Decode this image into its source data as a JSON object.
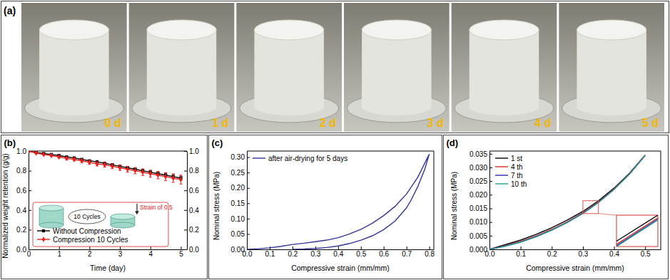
{
  "chart_data": [
    {
      "type": "photo",
      "title": "(a)",
      "labels": [
        "0 d",
        "1 d",
        "2 d",
        "3 d",
        "4 d",
        "5 d"
      ]
    },
    {
      "type": "line",
      "title": "(b)",
      "xlabel": "Time (day)",
      "ylabel": "Normalized weight retention (g/g)",
      "x": [
        0,
        0.25,
        0.5,
        0.75,
        1,
        1.25,
        1.5,
        1.75,
        2,
        2.25,
        2.5,
        2.75,
        3,
        3.25,
        3.5,
        3.75,
        4,
        4.25,
        4.5,
        4.75,
        5
      ],
      "xlim": [
        0,
        5.2
      ],
      "xticks": [
        0,
        1,
        2,
        3,
        4,
        5
      ],
      "ylim": [
        0,
        1.0
      ],
      "yticks": [
        {
          "value": 0,
          "label": "0.0"
        },
        0.2,
        0.4,
        0.6,
        0.8,
        {
          "value": 1,
          "label": "1.0"
        }
      ],
      "y2lim": [
        0,
        1.0
      ],
      "y2ticks": [
        {
          "value": 0,
          "label": "0.0"
        },
        0.2,
        0.4,
        0.6,
        0.8,
        {
          "value": 1,
          "label": "1.0"
        }
      ],
      "legend": "lower left",
      "annotations": [
        "10 Cycles",
        "Strain of 0.5"
      ],
      "series": [
        {
          "name": "Without Compression",
          "color": "#000000",
          "marker": "square",
          "values": [
            1.0,
            0.985,
            0.975,
            0.965,
            0.955,
            0.94,
            0.93,
            0.915,
            0.9,
            0.89,
            0.875,
            0.86,
            0.845,
            0.83,
            0.815,
            0.8,
            0.785,
            0.77,
            0.755,
            0.74,
            0.725
          ],
          "errors": [
            0,
            0.003,
            0.004,
            0.005,
            0.006,
            0.007,
            0.008,
            0.009,
            0.01,
            0.011,
            0.012,
            0.012,
            0.013,
            0.014,
            0.015,
            0.016,
            0.017,
            0.018,
            0.019,
            0.02,
            0.02
          ]
        },
        {
          "name": "Compression 10 Cycles",
          "color": "#e8201b",
          "marker": "diamond",
          "values": [
            1.0,
            0.98,
            0.965,
            0.955,
            0.94,
            0.925,
            0.915,
            0.9,
            0.885,
            0.87,
            0.86,
            0.845,
            0.83,
            0.815,
            0.8,
            0.785,
            0.77,
            0.755,
            0.74,
            0.725,
            0.71
          ],
          "errors": [
            0,
            0.005,
            0.007,
            0.009,
            0.011,
            0.013,
            0.015,
            0.017,
            0.019,
            0.021,
            0.023,
            0.025,
            0.027,
            0.029,
            0.031,
            0.033,
            0.035,
            0.037,
            0.04,
            0.043,
            0.045
          ]
        }
      ]
    },
    {
      "type": "line",
      "title": "(c)",
      "xlabel": "Compressive strain (mm/mm)",
      "ylabel": "Nominal stress (MPa)",
      "x": [
        0,
        0.05,
        0.1,
        0.15,
        0.2,
        0.25,
        0.3,
        0.35,
        0.4,
        0.45,
        0.5,
        0.55,
        0.6,
        0.65,
        0.7,
        0.75,
        0.8,
        0.78,
        0.75,
        0.72,
        0.7,
        0.65,
        0.6,
        0.55,
        0.5,
        0.45,
        0.4,
        0.35,
        0.3,
        0.25,
        0.2
      ],
      "xlim": [
        0,
        0.82
      ],
      "xticks": [
        {
          "value": 0,
          "label": "0.0"
        },
        0.1,
        0.2,
        0.3,
        0.4,
        0.5,
        0.6,
        0.7,
        0.8
      ],
      "ylim": [
        0,
        0.32
      ],
      "yticks": [
        {
          "value": 0,
          "label": "0.00"
        },
        0.05,
        {
          "value": 0.1,
          "label": "0.10"
        },
        0.15,
        {
          "value": 0.2,
          "label": "0.20"
        },
        0.25,
        {
          "value": 0.3,
          "label": "0.30"
        }
      ],
      "legend": "upper left",
      "series": [
        {
          "name": "after air-drying for 5 days",
          "color": "#34349a",
          "values": [
            0,
            0.002,
            0.005,
            0.01,
            0.016,
            0.02,
            0.025,
            0.03,
            0.038,
            0.05,
            0.065,
            0.085,
            0.11,
            0.14,
            0.18,
            0.235,
            0.31,
            0.26,
            0.205,
            0.16,
            0.135,
            0.092,
            0.064,
            0.044,
            0.03,
            0.019,
            0.011,
            0.006,
            0.003,
            0.001,
            0
          ]
        }
      ]
    },
    {
      "type": "line",
      "title": "(d)",
      "xlabel": "Compressive strain (mm/mm)",
      "ylabel": "Nominal stress (MPa)",
      "x": [
        0,
        0.05,
        0.1,
        0.15,
        0.2,
        0.25,
        0.3,
        0.35,
        0.4,
        0.45,
        0.5
      ],
      "xlim": [
        0,
        0.55
      ],
      "xticks": [
        {
          "value": 0,
          "label": "0.0"
        },
        0.1,
        0.2,
        0.3,
        0.4,
        0.5
      ],
      "ylim": [
        0,
        0.036
      ],
      "yticks": [
        {
          "value": 0,
          "label": "0.000"
        },
        0.005,
        {
          "value": 0.01,
          "label": "0.010"
        },
        0.015,
        {
          "value": 0.02,
          "label": "0.020"
        },
        0.025,
        {
          "value": 0.03,
          "label": "0.030"
        },
        0.035
      ],
      "legend": "upper left",
      "series": [
        {
          "name": "1 st",
          "color": "#000000",
          "values": [
            0,
            0.0017,
            0.0034,
            0.0055,
            0.0079,
            0.0107,
            0.0139,
            0.0178,
            0.0224,
            0.0279,
            0.0345
          ]
        },
        {
          "name": "4 th",
          "color": "#d62d20",
          "values": [
            0,
            0.0013,
            0.0029,
            0.0049,
            0.0073,
            0.0101,
            0.0134,
            0.0174,
            0.0221,
            0.0277,
            0.0344
          ]
        },
        {
          "name": "7 th",
          "color": "#2b2bb0",
          "values": [
            0,
            0.0012,
            0.0027,
            0.0047,
            0.0071,
            0.0099,
            0.0132,
            0.0172,
            0.022,
            0.0276,
            0.0344
          ]
        },
        {
          "name": "10 th",
          "color": "#2a9d8f",
          "values": [
            0,
            0.0011,
            0.0026,
            0.0046,
            0.007,
            0.0098,
            0.0131,
            0.0171,
            0.0219,
            0.0276,
            0.0344
          ]
        }
      ]
    }
  ]
}
